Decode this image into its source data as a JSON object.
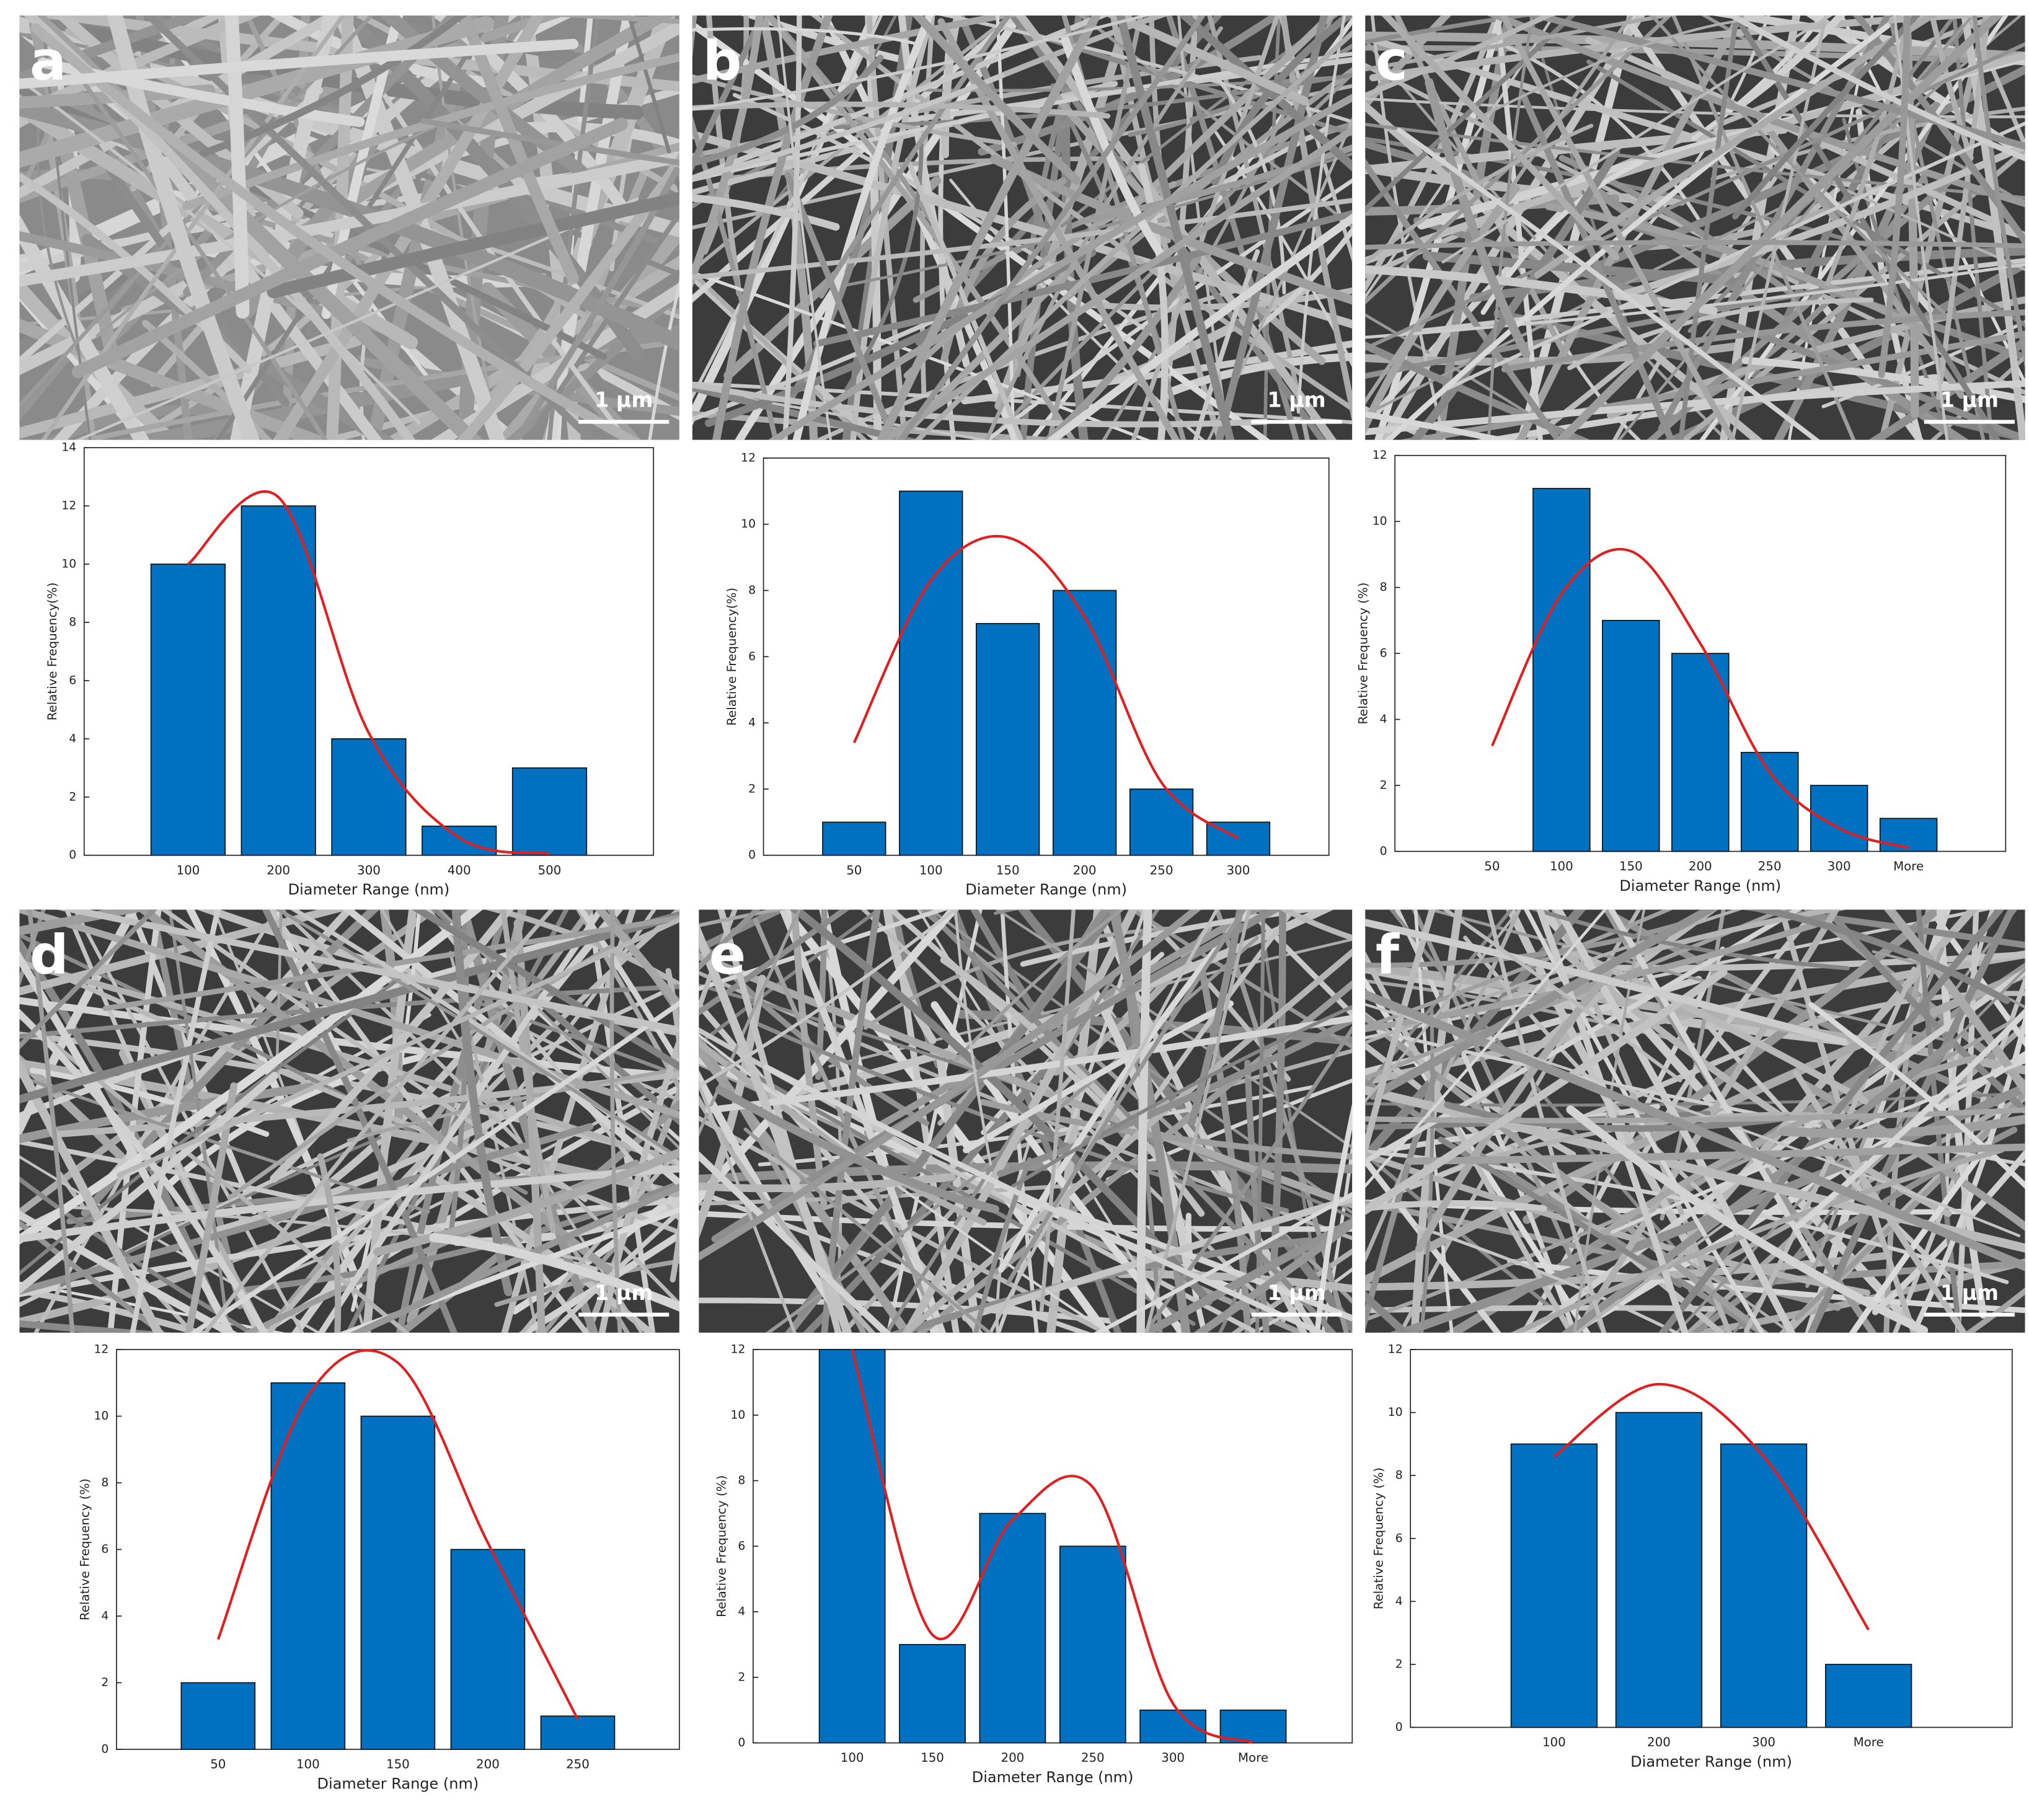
{
  "chart_data": [
    {
      "type": "bar",
      "panel": "a",
      "scale_bar": "1 µm",
      "xlabel": "Diameter Range (nm)",
      "ylabel": "Relative Frequency(%)",
      "categories": [
        "100",
        "200",
        "300",
        "400",
        "500"
      ],
      "values": [
        10,
        12,
        4,
        1,
        3
      ],
      "color": "#0070c0",
      "fit": {
        "color": "#e02020",
        "values": [
          10,
          12.3,
          4.2,
          0.6,
          0.05
        ]
      },
      "ylim": [
        0,
        14
      ],
      "yticks": [
        0,
        2,
        4,
        6,
        8,
        10,
        12,
        14
      ]
    },
    {
      "type": "bar",
      "panel": "b",
      "scale_bar": "1 µm",
      "xlabel": "Diameter Range (nm)",
      "ylabel": "Relative Frequency(%)",
      "categories": [
        "50",
        "100",
        "150",
        "200",
        "250",
        "300"
      ],
      "values": [
        1,
        11,
        7,
        8,
        2,
        1
      ],
      "color": "#0070c0",
      "fit": {
        "color": "#e02020",
        "values": [
          3.4,
          8.3,
          9.6,
          7.2,
          2.2,
          0.5
        ]
      },
      "ylim": [
        0,
        12
      ],
      "yticks": [
        0,
        2,
        4,
        6,
        8,
        10,
        12
      ]
    },
    {
      "type": "bar",
      "panel": "c",
      "scale_bar": "1 µm",
      "xlabel": "Diameter Range (nm)",
      "ylabel": "Relative Frequency (%)",
      "categories": [
        "50",
        "100",
        "150",
        "200",
        "250",
        "300",
        "More"
      ],
      "values": [
        0,
        11,
        7,
        6,
        3,
        2,
        1
      ],
      "color": "#0070c0",
      "fit": {
        "color": "#e02020",
        "values": [
          3.2,
          7.8,
          9.1,
          6.3,
          2.4,
          0.7,
          0.1
        ]
      },
      "ylim": [
        0,
        12
      ],
      "yticks": [
        0,
        2,
        4,
        6,
        8,
        10,
        12
      ]
    },
    {
      "type": "bar",
      "panel": "d",
      "scale_bar": "1 µm",
      "xlabel": "Diameter Range (nm)",
      "ylabel": "Relative Frequency (%)",
      "categories": [
        "50",
        "100",
        "150",
        "200",
        "250"
      ],
      "values": [
        2,
        11,
        10,
        6,
        1
      ],
      "color": "#0070c0",
      "fit": {
        "color": "#e02020",
        "values": [
          3.3,
          10.6,
          11.6,
          6.2,
          0.9
        ]
      },
      "ylim": [
        0,
        12
      ],
      "yticks": [
        0,
        2,
        4,
        6,
        8,
        10,
        12
      ]
    },
    {
      "type": "bar",
      "panel": "e",
      "scale_bar": "1 µm",
      "xlabel": "Diameter Range (nm)",
      "ylabel": "Relative Frequency (%)",
      "categories": [
        "100",
        "150",
        "200",
        "250",
        "300",
        "More"
      ],
      "values": [
        12,
        3,
        7,
        6,
        1,
        1
      ],
      "color": "#0070c0",
      "fit": {
        "color": "#e02020",
        "values": [
          12,
          3.3,
          6.8,
          7.8,
          1.2,
          0
        ]
      },
      "ylim": [
        0,
        12
      ],
      "yticks": [
        0,
        2,
        4,
        6,
        8,
        10,
        12
      ]
    },
    {
      "type": "bar",
      "panel": "f",
      "scale_bar": "1 µm",
      "xlabel": "Diameter Range (nm)",
      "ylabel": "Relative Frequency (%)",
      "categories": [
        "100",
        "200",
        "300",
        "More"
      ],
      "values": [
        9,
        10,
        9,
        2
      ],
      "color": "#0070c0",
      "fit": {
        "color": "#e02020",
        "values": [
          8.6,
          10.9,
          8.6,
          3.1
        ]
      },
      "ylim": [
        0,
        12
      ],
      "yticks": [
        0,
        2,
        4,
        6,
        8,
        10,
        12
      ]
    }
  ]
}
